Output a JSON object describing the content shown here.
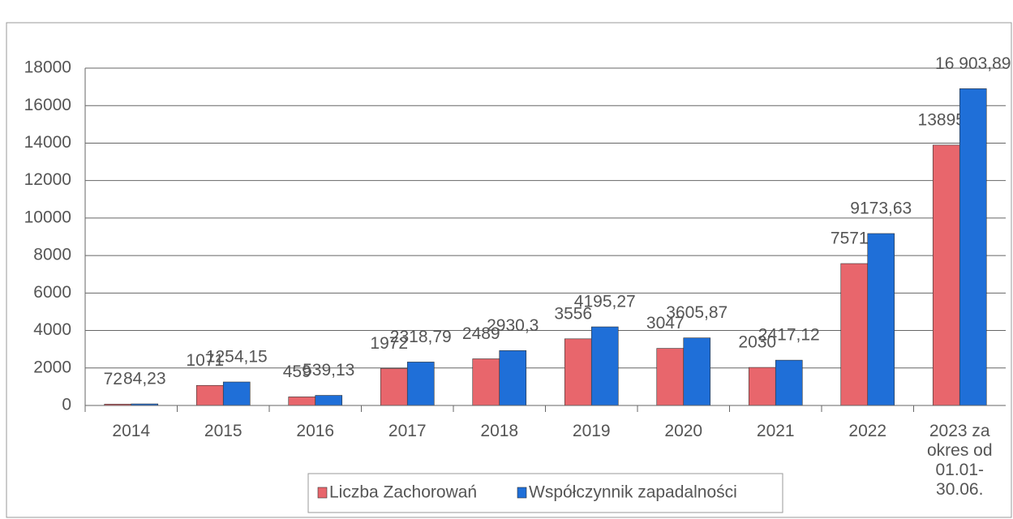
{
  "chart_data": {
    "type": "bar",
    "categories": [
      "2014",
      "2015",
      "2016",
      "2017",
      "2018",
      "2019",
      "2020",
      "2021",
      "2022",
      "2023 za okres od 01.01-30.06."
    ],
    "series": [
      {
        "name": "Liczba Zachorowań",
        "color": "#e8666c",
        "values": [
          72,
          1071,
          459,
          1972,
          2489,
          3556,
          3047,
          2030,
          7571,
          13895
        ]
      },
      {
        "name": "Współczynnik zapadalności",
        "color": "#1f6fd8",
        "values": [
          84.23,
          1254.15,
          539.13,
          2318.79,
          2930.3,
          4195.27,
          3605.87,
          2417.12,
          9173.63,
          16903.89
        ],
        "value_labels": [
          "84,23",
          "1254,15",
          "539,13",
          "2318,79",
          "2930,3",
          "4195,27",
          "3605,87",
          "2417,12",
          "9173,63",
          "16 903,89"
        ]
      }
    ],
    "ylim": [
      0,
      18000
    ],
    "yticks": [
      0,
      2000,
      4000,
      6000,
      8000,
      10000,
      12000,
      14000,
      16000,
      18000
    ],
    "grid": true
  }
}
